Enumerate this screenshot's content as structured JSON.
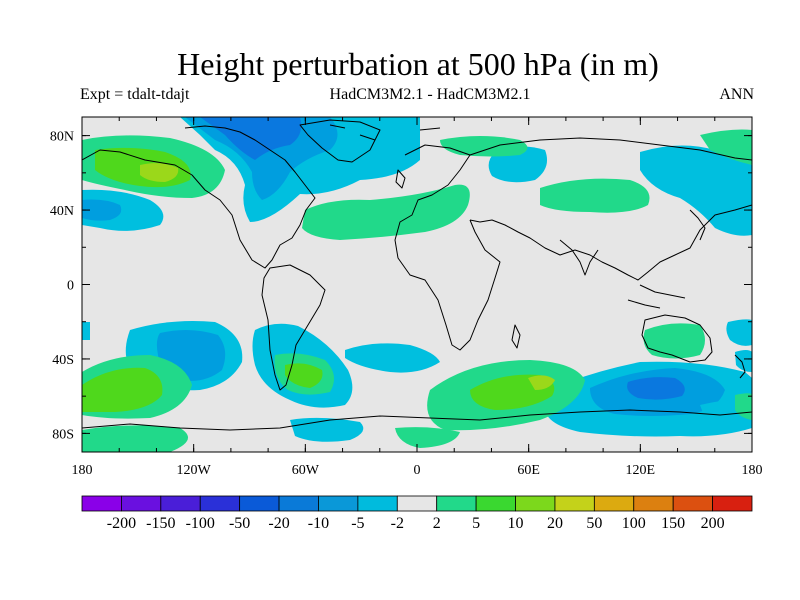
{
  "title": "Height perturbation at 500 hPa (in m)",
  "subtitle_left": "Expt = tdalt-tdajt",
  "subtitle_center": "HadCM3M2.1 - HadCM3M2.1",
  "subtitle_right": "ANN",
  "colors": {
    "background_band": "#e6e6e6",
    "neg_2_5": "#00bfdf",
    "neg_5_10": "#009edf",
    "neg_10_20": "#0a78df",
    "pos_2_5": "#21d98a",
    "pos_5_10": "#4fd81c",
    "pos_10_20": "#9bd81a"
  },
  "map": {
    "projection": "cylindrical equidistant",
    "lon_range": [
      -180,
      180
    ],
    "lat_range": [
      -90,
      90
    ],
    "x_ticks": [
      "180",
      "120W",
      "60W",
      "0",
      "60E",
      "120E",
      "180"
    ],
    "y_ticks": [
      "80N",
      "40N",
      "0",
      "40S",
      "80S"
    ]
  },
  "colorbar": {
    "labels": [
      "-200",
      "-150",
      "-100",
      "-50",
      "-20",
      "-10",
      "-5",
      "-2",
      "2",
      "5",
      "10",
      "20",
      "50",
      "100",
      "150",
      "200"
    ],
    "colors": [
      "#8a00e8",
      "#6a10e0",
      "#4a1ed8",
      "#2a30d8",
      "#0a5ad8",
      "#0a7ad8",
      "#0a98d8",
      "#00bbdd",
      "#e6e6e6",
      "#22d98a",
      "#3ad830",
      "#7cd81c",
      "#c4d21a",
      "#dcaa10",
      "#dc8010",
      "#dc5010",
      "#d82010"
    ]
  }
}
